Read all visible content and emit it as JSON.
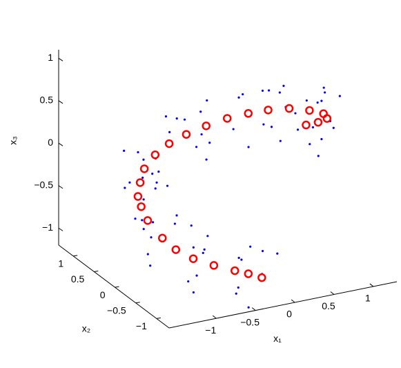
{
  "chart_data": {
    "type": "scatter3d",
    "x_label": "x₁",
    "y_label": "x₂",
    "z_label": "x₃",
    "xlim": [
      -1.6,
      1.3
    ],
    "ylim": [
      -1.3,
      1.35
    ],
    "zlim": [
      -1.2,
      1.1
    ],
    "xticks": [
      {
        "value": -1,
        "label": "−1"
      },
      {
        "value": -0.5,
        "label": "−0.5"
      },
      0,
      0.5,
      1
    ],
    "yticks": [
      {
        "value": -1,
        "label": "−1"
      },
      {
        "value": -0.5,
        "label": "−0.5"
      },
      0,
      0.5,
      1
    ],
    "zticks": [
      {
        "value": -1,
        "label": "−1"
      },
      {
        "value": -0.5,
        "label": "−0.5"
      },
      0,
      0.5,
      1
    ],
    "series": [
      {
        "color": "#0000ff",
        "marker": "dot",
        "x": [
          -0.01,
          -0.56,
          -0.36,
          -0.6,
          -0.35,
          -0.45,
          -0.39,
          -0.22,
          -0.29,
          -1.07,
          -0.87,
          -0.97,
          -0.95,
          -1.05,
          -0.85,
          -0.87,
          -0.94,
          -1.49,
          -1.43,
          -1.53,
          -1.28,
          -1.53,
          -1.33,
          -1.16,
          -1.28,
          -1.58,
          -1.58,
          -1.56,
          -1.49,
          -1.52,
          -1.33,
          -1.16,
          -1.23,
          -1.55,
          -1.49,
          -1.55,
          -1.17,
          -1.27,
          -1.07,
          -0.69,
          -0.76,
          -1.31,
          -0.86,
          -0.96,
          -0.71,
          -0.52,
          -0.32,
          -0.15,
          0.08,
          -0.47,
          -0.27,
          -0.07,
          0.18,
          0.08,
          0.57,
          0.74,
          0.67,
          0.42,
          0.62,
          0.52,
          1.06,
          0.96,
          1.16,
          1.28,
          1.29,
          0.92,
          1.16,
          1.06,
          1.29,
          1.07,
          1.27,
          1.29,
          1.19,
          0.64,
          0.84
        ],
        "y": [
          -0.9,
          -0.95,
          -0.7,
          -1.09,
          -1.19,
          -1.04,
          -0.68,
          -0.93,
          -0.78,
          -0.76,
          -0.51,
          -0.96,
          -1.0,
          -0.85,
          -0.55,
          -0.74,
          -0.59,
          -0.64,
          -0.33,
          -0.78,
          -0.88,
          -0.66,
          -0.36,
          -0.61,
          -0.4,
          -0.45,
          -0.2,
          -0.59,
          -0.69,
          -0.54,
          -0.18,
          -0.43,
          -0.28,
          -0.26,
          -0.01,
          -0.46,
          -0.5,
          -0.35,
          -0.05,
          -0.24,
          -0.09,
          -0.14,
          0.17,
          -0.28,
          -0.38,
          -0.16,
          0.14,
          -0.11,
          0.1,
          0.05,
          0.3,
          -0.09,
          -0.19,
          -0.04,
          0.33,
          0.08,
          0.23,
          0.24,
          0.49,
          0.04,
          0,
          0.15,
          0.45,
          0.26,
          0.41,
          0.36,
          0.6,
          0.15,
          0.05,
          0.15,
          0.45,
          0.2,
          0.3,
          0.25,
          0.5
        ],
        "z": [
          -0.77,
          -1.12,
          -0.85,
          -0.64,
          -0.57,
          -1.27,
          -1.18,
          -0.96,
          -0.68,
          -0.95,
          -0.68,
          -0.52,
          -0.35,
          -1.05,
          -1.0,
          -0.66,
          -0.38,
          -0.73,
          -0.32,
          -0.16,
          -0.09,
          -0.58,
          -0.53,
          -0.31,
          0.12,
          -0.23,
          0.04,
          0.3,
          0.37,
          -0.33,
          -0.15,
          0.07,
          0.35,
          0.12,
          0.39,
          0.55,
          0.73,
          0.03,
          0.08,
          0.37,
          0.65,
          0.3,
          0.61,
          0.77,
          0.84,
          0.16,
          0.21,
          0.43,
          0.72,
          0.37,
          0.64,
          0.78,
          0.85,
          0.15,
          0.16,
          0.38,
          0.66,
          0.25,
          0.52,
          0.68,
          0.65,
          -0.05,
          0,
          0.12,
          0.4,
          0.05,
          0.26,
          0.42,
          0.49,
          -0.21,
          -0.16,
          0.06,
          0.36,
          0.01,
          0.28
        ]
      },
      {
        "color": "#ff0000",
        "marker": "circle",
        "x": [
          -0.26,
          -0.4,
          -0.54,
          -0.77,
          -1.0,
          -1.19,
          -1.33,
          -1.48,
          -1.53,
          -1.54,
          -1.48,
          -1.39,
          -1.22,
          -1.01,
          -0.76,
          -0.47,
          -0.17,
          0.13,
          0.42,
          0.72,
          1.01,
          1.22,
          1.26,
          1.12,
          0.94
        ],
        "y": [
          -1,
          -0.94,
          -0.88,
          -0.81,
          -0.75,
          -0.69,
          -0.63,
          -0.56,
          -0.5,
          -0.44,
          -0.38,
          -0.31,
          -0.25,
          -0.19,
          -0.13,
          -0.06,
          0,
          0.06,
          0.13,
          0.19,
          0.25,
          0.31,
          0.3,
          0.25,
          0.2
        ],
        "z": [
          -0.97,
          -0.92,
          -0.88,
          -0.8,
          -0.7,
          -0.58,
          -0.44,
          -0.23,
          -0.08,
          0.02,
          0.15,
          0.27,
          0.38,
          0.45,
          0.49,
          0.51,
          0.52,
          0.5,
          0.46,
          0.4,
          0.3,
          0.2,
          0.14,
          0.14,
          0.16
        ]
      }
    ]
  }
}
